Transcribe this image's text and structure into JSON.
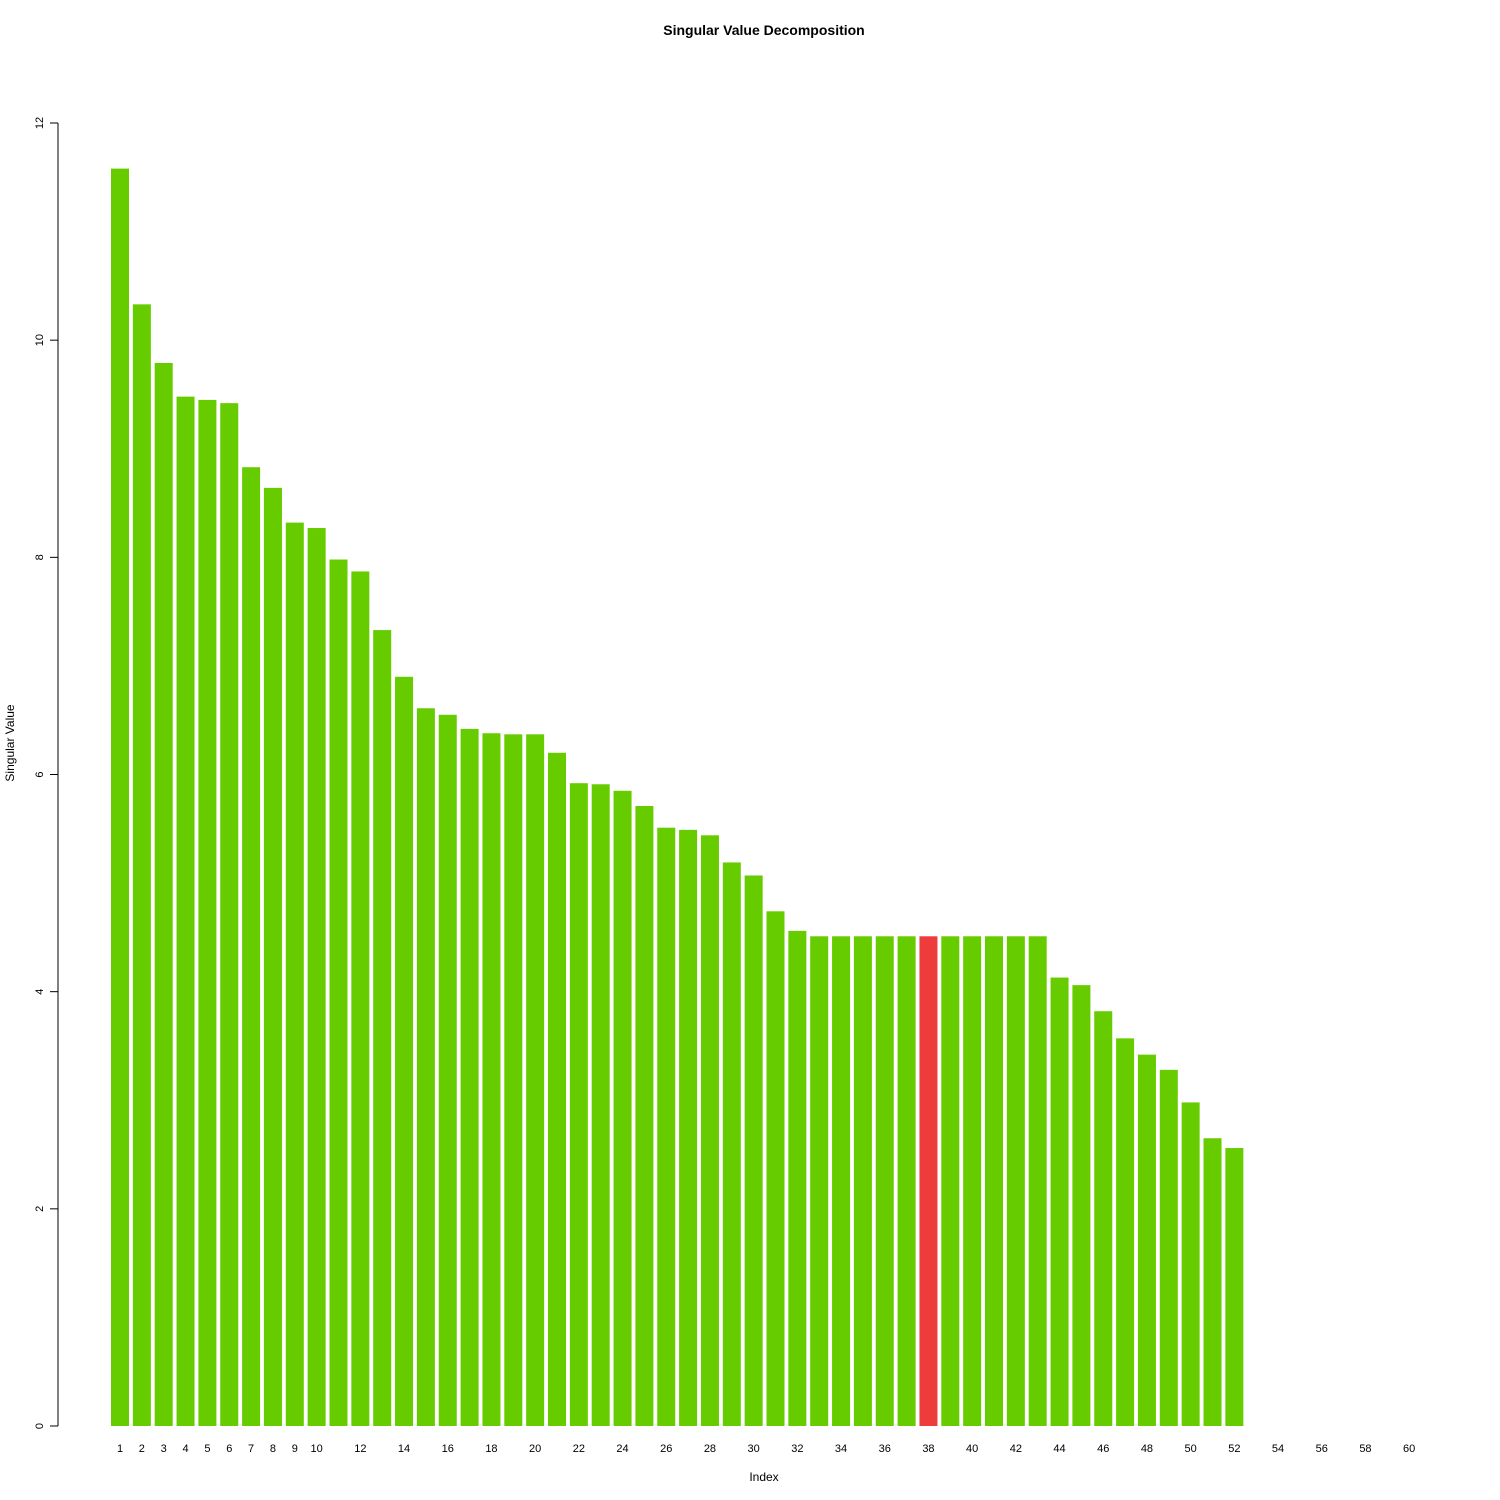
{
  "chart_data": {
    "type": "bar",
    "title": "Singular Value Decomposition",
    "xlabel": "Index",
    "ylabel": "Singular Value",
    "ylim": [
      0,
      12
    ],
    "y_ticks": [
      0,
      2,
      4,
      6,
      8,
      10,
      12
    ],
    "x_tick_labels": [
      "1",
      "2",
      "3",
      "4",
      "5",
      "6",
      "7",
      "8",
      "9",
      "10",
      "12",
      "14",
      "16",
      "18",
      "20",
      "22",
      "24",
      "26",
      "28",
      "30",
      "32",
      "34",
      "36",
      "38",
      "40",
      "42",
      "44",
      "46",
      "48",
      "50",
      "52",
      "54",
      "56",
      "58",
      "60"
    ],
    "categories": [
      1,
      2,
      3,
      4,
      5,
      6,
      7,
      8,
      9,
      10,
      11,
      12,
      13,
      14,
      15,
      16,
      17,
      18,
      19,
      20,
      21,
      22,
      23,
      24,
      25,
      26,
      27,
      28,
      29,
      30,
      31,
      32,
      33,
      34,
      35,
      36,
      37,
      38,
      39,
      40,
      41,
      42,
      43,
      44,
      45,
      46,
      47,
      48,
      49,
      50,
      51,
      52
    ],
    "values": [
      11.58,
      10.33,
      9.79,
      9.48,
      9.45,
      9.42,
      8.83,
      8.64,
      8.32,
      8.27,
      7.98,
      7.87,
      7.33,
      6.9,
      6.61,
      6.55,
      6.42,
      6.38,
      6.37,
      6.37,
      6.2,
      5.92,
      5.91,
      5.85,
      5.71,
      5.51,
      5.49,
      5.44,
      5.19,
      5.07,
      4.74,
      4.56,
      4.51,
      4.51,
      4.51,
      4.51,
      4.51,
      4.51,
      4.51,
      4.51,
      4.51,
      4.51,
      4.51,
      4.13,
      4.06,
      3.82,
      3.57,
      3.42,
      3.28,
      2.98,
      2.65,
      2.56
    ],
    "highlight_index": 38,
    "colors": {
      "bar": "#66cc00",
      "highlight": "#ee3b3b",
      "axis": "#000000"
    },
    "grid": false,
    "legend": "none"
  }
}
